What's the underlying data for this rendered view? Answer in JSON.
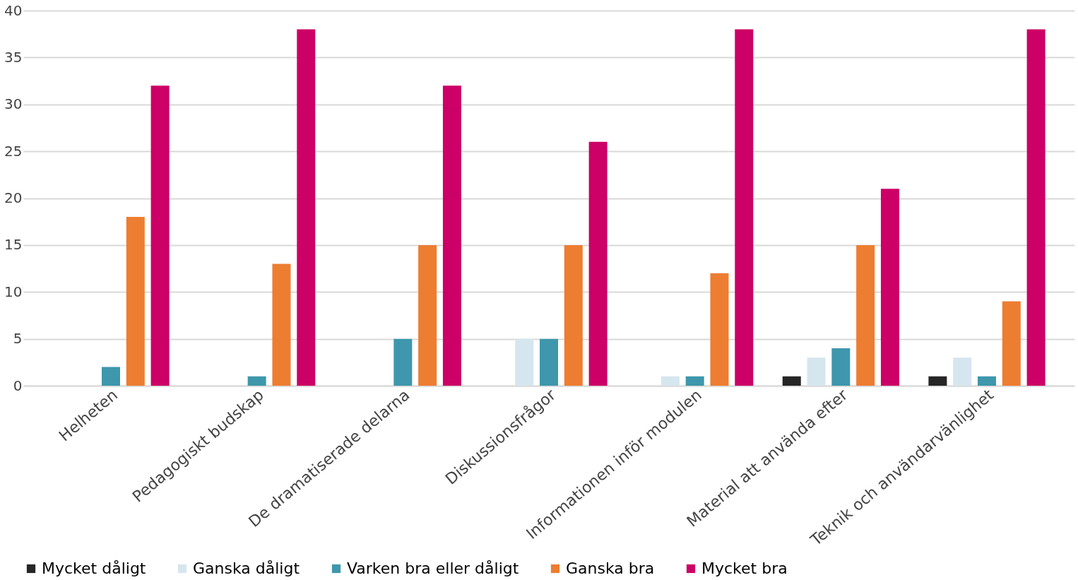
{
  "chart_data": {
    "type": "bar",
    "categories": [
      "Helheten",
      "Pedagogiskt budskap",
      "De dramatiserade delarna",
      "Diskussionsfrågor",
      "Informationen inför modulen",
      "Material att använda efter",
      "Teknik och användarvänlighet"
    ],
    "series": [
      {
        "name": "Mycket dåligt",
        "color": "#262626",
        "values": [
          0,
          0,
          0,
          0,
          0,
          1,
          1
        ]
      },
      {
        "name": "Ganska dåligt",
        "color": "#d6e6ee",
        "values": [
          0,
          0,
          0,
          5,
          1,
          3,
          3
        ]
      },
      {
        "name": "Varken bra eller dåligt",
        "color": "#3e97ac",
        "values": [
          2,
          1,
          5,
          5,
          1,
          4,
          1
        ]
      },
      {
        "name": "Ganska bra",
        "color": "#ed7d31",
        "values": [
          18,
          13,
          15,
          15,
          12,
          15,
          9
        ]
      },
      {
        "name": "Mycket bra",
        "color": "#cc0066",
        "values": [
          32,
          38,
          32,
          26,
          38,
          21,
          38
        ]
      }
    ],
    "ylim": [
      0,
      40
    ],
    "yticks": [
      0,
      5,
      10,
      15,
      20,
      25,
      30,
      35,
      40
    ],
    "grid": "y",
    "legend": "bottom"
  }
}
